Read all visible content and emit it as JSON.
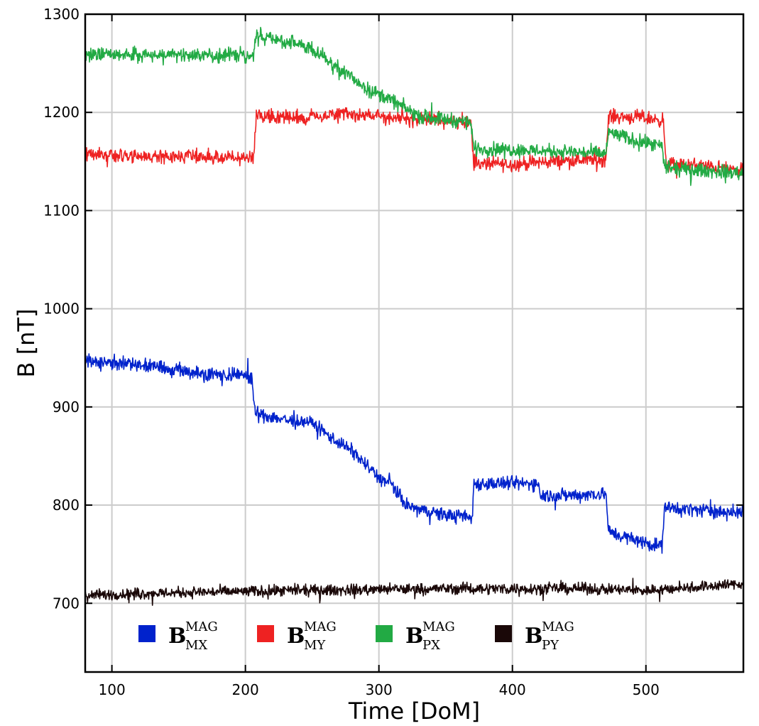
{
  "chart_data": {
    "type": "line",
    "title": "",
    "xlabel": "Time [DoM]",
    "ylabel": "B [nT]",
    "xlim": [
      80,
      573
    ],
    "ylim": [
      630,
      1300
    ],
    "xticks": [
      100,
      200,
      300,
      400,
      500
    ],
    "yticks": [
      700,
      800,
      900,
      1000,
      1100,
      1200,
      1300
    ],
    "grid": true,
    "legend_position": "bottom-left",
    "series": [
      {
        "name_main": "B",
        "name_sup": "MAG",
        "name_sub": "MX",
        "color": "#0022cc",
        "noise": 5,
        "points": [
          [
            80,
            947
          ],
          [
            100,
            945
          ],
          [
            130,
            942
          ],
          [
            160,
            935
          ],
          [
            180,
            933
          ],
          [
            205,
            932
          ],
          [
            207,
            893
          ],
          [
            220,
            890
          ],
          [
            240,
            884
          ],
          [
            250,
            884
          ],
          [
            260,
            873
          ],
          [
            280,
            855
          ],
          [
            300,
            828
          ],
          [
            310,
            820
          ],
          [
            320,
            800
          ],
          [
            330,
            795
          ],
          [
            350,
            790
          ],
          [
            370,
            787
          ],
          [
            371,
            822
          ],
          [
            400,
            822
          ],
          [
            420,
            822
          ],
          [
            421,
            810
          ],
          [
            445,
            810
          ],
          [
            470,
            812
          ],
          [
            472,
            773
          ],
          [
            490,
            765
          ],
          [
            512,
            758
          ],
          [
            514,
            797
          ],
          [
            540,
            795
          ],
          [
            573,
            792
          ]
        ]
      },
      {
        "name_main": "B",
        "name_sup": "MAG",
        "name_sub": "MY",
        "color": "#ee2222",
        "noise": 5,
        "points": [
          [
            80,
            1158
          ],
          [
            120,
            1155
          ],
          [
            160,
            1156
          ],
          [
            200,
            1153
          ],
          [
            206,
            1153
          ],
          [
            208,
            1197
          ],
          [
            240,
            1195
          ],
          [
            260,
            1196
          ],
          [
            280,
            1198
          ],
          [
            300,
            1196
          ],
          [
            330,
            1193
          ],
          [
            350,
            1192
          ],
          [
            369,
            1190
          ],
          [
            371,
            1148
          ],
          [
            400,
            1147
          ],
          [
            440,
            1151
          ],
          [
            470,
            1152
          ],
          [
            472,
            1196
          ],
          [
            495,
            1195
          ],
          [
            513,
            1192
          ],
          [
            515,
            1147
          ],
          [
            540,
            1146
          ],
          [
            573,
            1140
          ]
        ]
      },
      {
        "name_main": "B",
        "name_sup": "MAG",
        "name_sub": "PX",
        "color": "#22aa44",
        "noise": 5,
        "points": [
          [
            80,
            1258
          ],
          [
            120,
            1259
          ],
          [
            160,
            1259
          ],
          [
            206,
            1258
          ],
          [
            208,
            1278
          ],
          [
            230,
            1272
          ],
          [
            250,
            1265
          ],
          [
            270,
            1245
          ],
          [
            290,
            1225
          ],
          [
            310,
            1212
          ],
          [
            330,
            1196
          ],
          [
            350,
            1193
          ],
          [
            369,
            1190
          ],
          [
            371,
            1163
          ],
          [
            400,
            1162
          ],
          [
            440,
            1160
          ],
          [
            470,
            1158
          ],
          [
            472,
            1180
          ],
          [
            490,
            1172
          ],
          [
            512,
            1165
          ],
          [
            514,
            1143
          ],
          [
            540,
            1141
          ],
          [
            573,
            1138
          ]
        ]
      },
      {
        "name_main": "B",
        "name_sup": "MAG",
        "name_sub": "PY",
        "color": "#1a0808",
        "noise": 4,
        "points": [
          [
            80,
            708
          ],
          [
            150,
            711
          ],
          [
            250,
            713
          ],
          [
            350,
            715
          ],
          [
            450,
            715
          ],
          [
            500,
            713
          ],
          [
            573,
            720
          ]
        ]
      }
    ]
  }
}
